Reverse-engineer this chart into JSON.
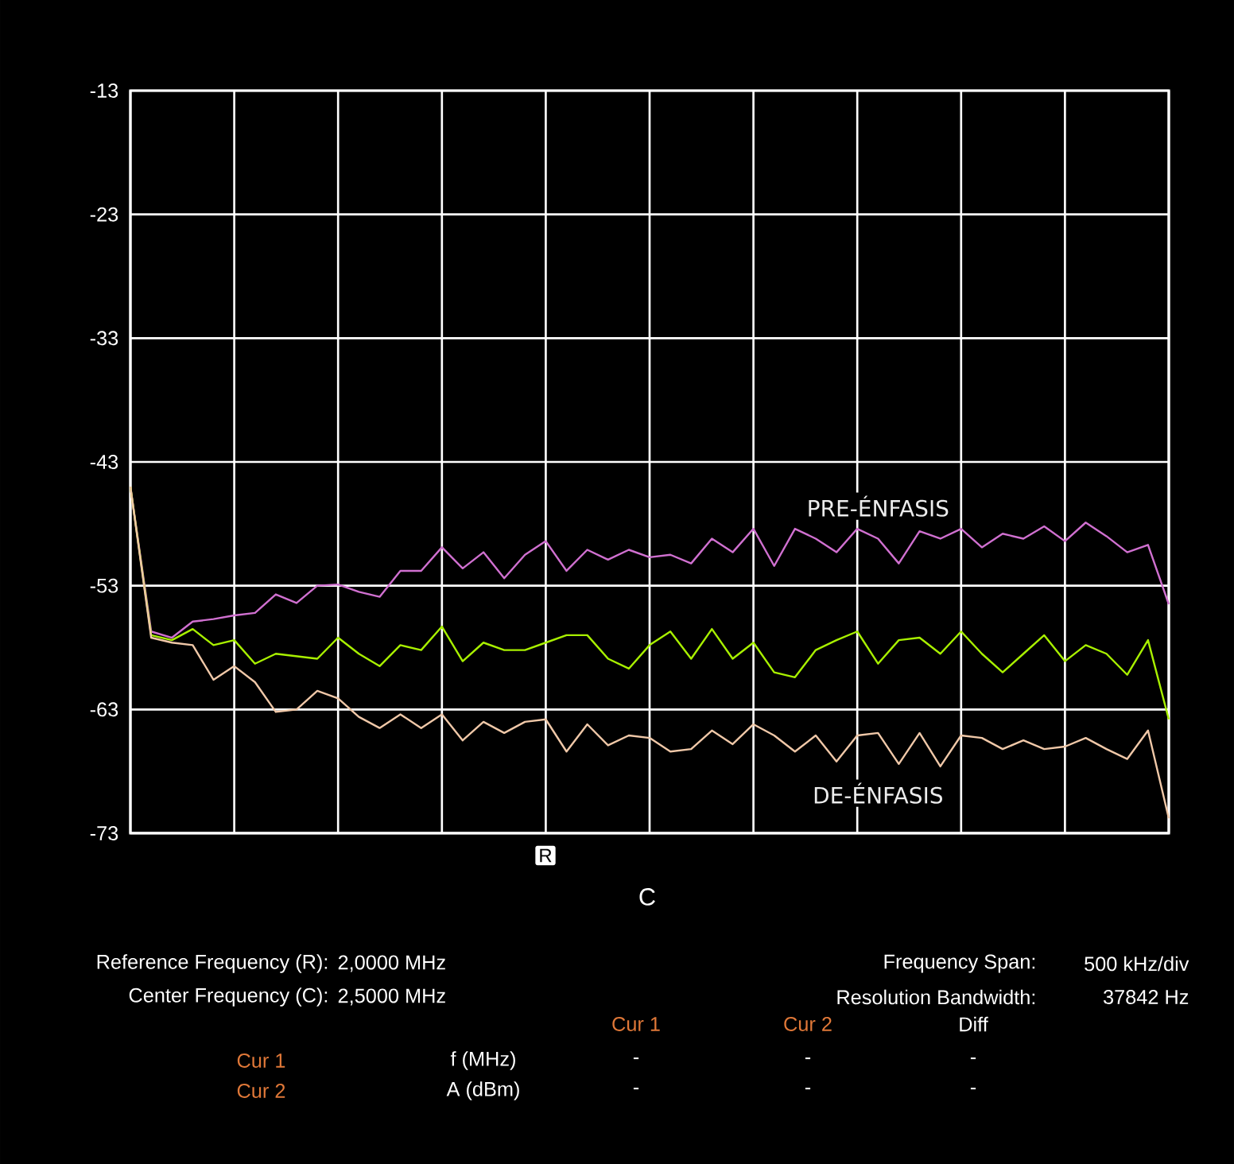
{
  "chart_data": {
    "type": "line",
    "ylim": [
      -73,
      -13
    ],
    "categories": [
      null,
      null,
      null,
      null,
      null,
      null,
      null,
      null,
      null,
      null,
      null,
      null,
      null,
      null,
      null,
      null,
      null,
      null,
      null,
      null,
      null,
      null,
      null,
      null,
      null,
      null,
      null,
      null,
      null,
      null,
      null,
      null,
      null,
      null,
      null,
      null,
      null,
      null,
      null,
      null,
      null,
      null,
      null,
      null,
      null,
      null,
      null,
      null,
      null,
      null,
      null
    ],
    "yticks": [
      -13,
      -23,
      -33,
      -43,
      -53,
      -63,
      -73
    ],
    "tick_labels": "y",
    "grid": true,
    "series": [
      {
        "name": "PRE-ÉNFASIS",
        "color": "#d070d0",
        "values": [
          -45,
          -56.7,
          -57.2,
          -55.9,
          -55.7,
          -55.4,
          -55.2,
          -53.7,
          -54.4,
          -53,
          -52.9,
          -53.5,
          -53.9,
          -51.8,
          -51.8,
          -49.9,
          -51.6,
          -50.3,
          -52.4,
          -50.5,
          -49.4,
          -51.8,
          -50.1,
          -50.9,
          -50.1,
          -50.7,
          -50.5,
          -51.2,
          -49.2,
          -50.3,
          -48.4,
          -51.4,
          -48.4,
          -49.2,
          -50.3,
          -48.4,
          -49.2,
          -51.2,
          -48.6,
          -49.2,
          -48.4,
          -49.9,
          -48.8,
          -49.2,
          -48.2,
          -49.4,
          -47.9,
          -49,
          -50.3,
          -49.7,
          -54.5
        ]
      },
      {
        "color": "#a8f000",
        "values": [
          -45,
          -57,
          -57.4,
          -56.5,
          -57.8,
          -57.4,
          -59.3,
          -58.5,
          -58.7,
          -58.9,
          -57.2,
          -58.5,
          -59.5,
          -57.8,
          -58.2,
          -56.3,
          -59.1,
          -57.6,
          -58.2,
          -58.2,
          -57.6,
          -57,
          -57,
          -58.9,
          -59.7,
          -57.8,
          -56.7,
          -58.9,
          -56.5,
          -58.9,
          -57.6,
          -60,
          -60.4,
          -58.2,
          -57.4,
          -56.7,
          -59.3,
          -57.4,
          -57.2,
          -58.5,
          -56.7,
          -58.5,
          -60,
          -58.5,
          -57,
          -59.1,
          -57.8,
          -58.5,
          -60.2,
          -57.4,
          -63.8
        ]
      },
      {
        "name": "DE-ÉNFASIS",
        "color": "#f0c8a8",
        "values": [
          -45,
          -57.2,
          -57.6,
          -57.8,
          -60.6,
          -59.5,
          -60.8,
          -63.2,
          -63,
          -61.5,
          -62.1,
          -63.6,
          -64.5,
          -63.4,
          -64.5,
          -63.4,
          -65.5,
          -64,
          -64.9,
          -64,
          -63.8,
          -66.4,
          -64.2,
          -65.9,
          -65.1,
          -65.3,
          -66.4,
          -66.2,
          -64.7,
          -65.8,
          -64.2,
          -65.1,
          -66.4,
          -65.1,
          -67.2,
          -65.1,
          -64.9,
          -67.4,
          -64.9,
          -67.6,
          -65.1,
          -65.3,
          -66.2,
          -65.5,
          -66.2,
          -66,
          -65.3,
          -66.2,
          -67,
          -64.7,
          -71.8
        ]
      }
    ],
    "annotations": [
      "Reference Frequency (R):",
      "2,0000 MHz",
      "Center Frequency (C):",
      "2,5000 MHz",
      "Frequency Span:",
      "500 kHz/div",
      "Resolution Bandwidth:",
      "37842 Hz",
      "Cur 1",
      "Cur 2",
      "Diff",
      "Cur 1",
      "Cur 2",
      "f (MHz)",
      "A (dBm)",
      "-",
      "-",
      "-",
      "-",
      "-",
      "-",
      "R",
      "C"
    ]
  }
}
